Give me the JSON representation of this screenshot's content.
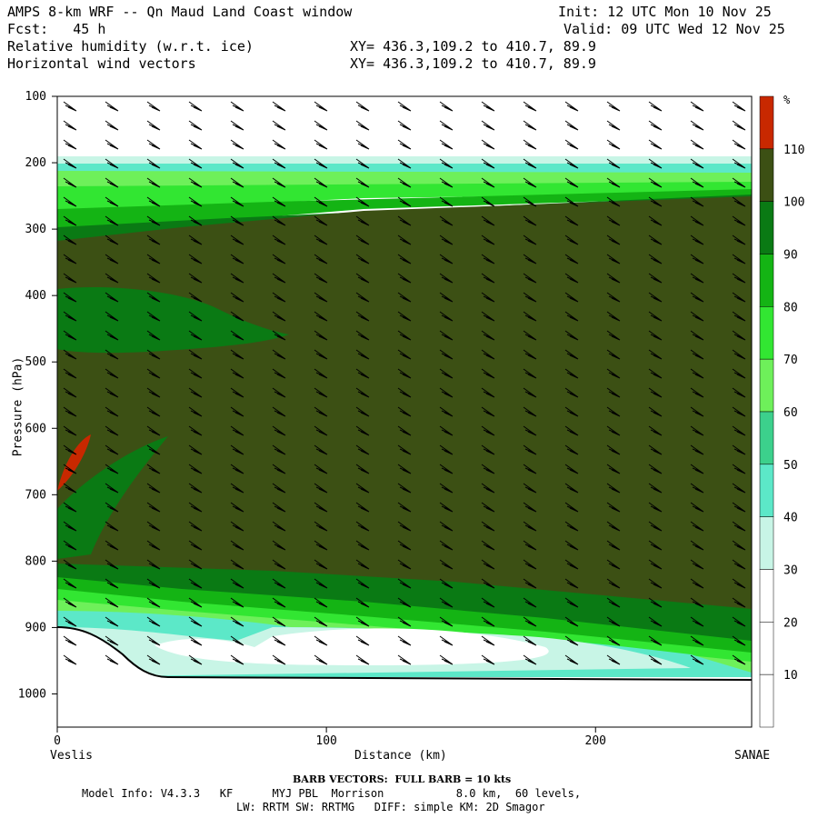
{
  "header": {
    "title": "AMPS 8-km WRF -- Qn Maud Land Coast window",
    "init": "Init: 12 UTC Mon 10 Nov 25",
    "fcst": "Fcst:   45 h",
    "valid": "Valid: 09 UTC Wed 12 Nov 25",
    "field1": "Relative humidity (w.r.t. ice)",
    "field2": "Horizontal wind vectors",
    "xy1": "XY= 436.3,109.2 to 410.7, 89.9",
    "xy2": "XY= 436.3,109.2 to 410.7, 89.9"
  },
  "footer": {
    "barb_note": "BARB VECTORS:  FULL BARB = 10 kts",
    "model_info_1": "Model Info: V4.3.3   KF      MYJ PBL  Morrison           8.0 km,  60 levels,",
    "model_info_2": "LW: RRTM SW: RRTMG   DIFF: simple KM: 2D Smagor"
  },
  "chart_data": {
    "type": "cross-section-contour",
    "variable": "Relative humidity (w.r.t. ice)",
    "overlay": "Horizontal wind vectors",
    "xlabel": "Distance (km)",
    "ylabel": "Pressure (hPa)",
    "x_start_label": "Veslis",
    "x_end_label": "SANAE",
    "xlim": [
      0,
      258
    ],
    "ylim": [
      1050,
      100
    ],
    "x_ticks": [
      0,
      100,
      200
    ],
    "y_ticks": [
      100,
      200,
      300,
      400,
      500,
      600,
      700,
      800,
      900,
      1000
    ],
    "colorbar": {
      "unit": "%",
      "levels": [
        10,
        20,
        30,
        40,
        50,
        60,
        70,
        80,
        90,
        100,
        110
      ],
      "colors": [
        "#ffffff",
        "#ffffff",
        "#ffffff",
        "#c8f5e6",
        "#5ce8c8",
        "#3cd08c",
        "#6ef05a",
        "#32e632",
        "#14b414",
        "#0a7a14",
        "#3c5014",
        "#c82800"
      ]
    },
    "terrain_surface": [
      {
        "x": 0,
        "p": 895
      },
      {
        "x": 15,
        "p": 905
      },
      {
        "x": 30,
        "p": 945
      },
      {
        "x": 40,
        "p": 968
      },
      {
        "x": 60,
        "p": 975
      },
      {
        "x": 100,
        "p": 975
      },
      {
        "x": 150,
        "p": 976
      },
      {
        "x": 200,
        "p": 977
      },
      {
        "x": 258,
        "p": 978
      }
    ],
    "rh_features": [
      {
        "region": "upper dry layer",
        "p_range": [
          100,
          190
        ],
        "rh": "<10"
      },
      {
        "region": "moist mid troposphere",
        "p_range": [
          260,
          820
        ],
        "rh": "100-110"
      },
      {
        "region": "supersaturated pocket near Veslis",
        "x_range": [
          0,
          12
        ],
        "p_range": [
          610,
          690
        ],
        "rh": ">110"
      },
      {
        "region": "dry boundary layer",
        "x_range": [
          30,
          160
        ],
        "p_range": [
          880,
          960
        ],
        "rh": "<30"
      }
    ],
    "wind_barbs": "northeasterly to easterly 10-30 kts throughout column"
  }
}
